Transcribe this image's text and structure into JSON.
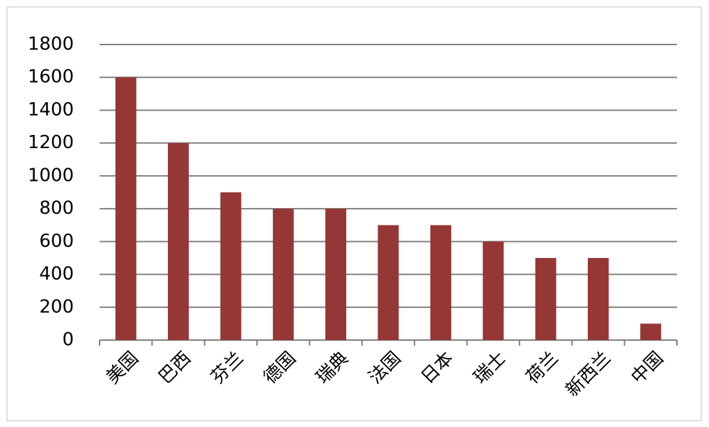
{
  "chart_data": {
    "type": "bar",
    "categories": [
      "美国",
      "巴西",
      "芬兰",
      "德国",
      "瑞典",
      "法国",
      "日本",
      "瑞士",
      "荷兰",
      "新西兰",
      "中国"
    ],
    "values": [
      1600,
      1200,
      900,
      800,
      800,
      700,
      700,
      600,
      500,
      500,
      100
    ],
    "color": "#953735",
    "ylim": [
      0,
      1800
    ],
    "yticks": [
      0,
      200,
      400,
      600,
      800,
      1000,
      1200,
      1400,
      1600,
      1800
    ],
    "grid": true
  }
}
